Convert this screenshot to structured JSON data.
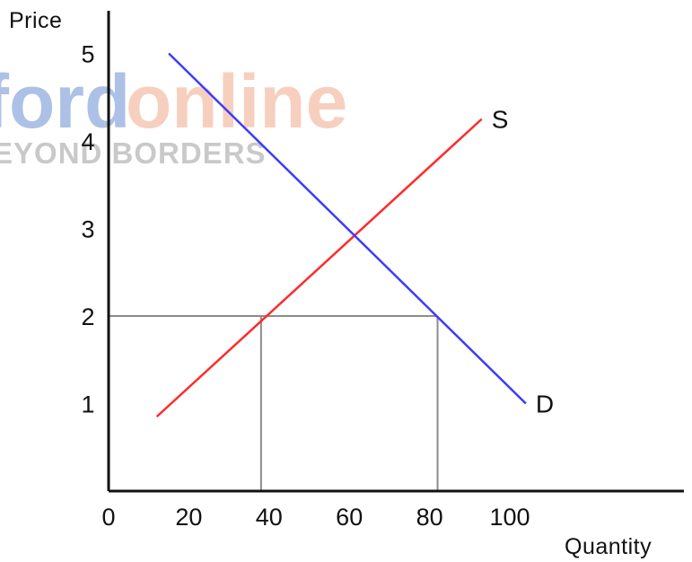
{
  "watermark": {
    "text_left": "ford",
    "text_right": "online",
    "subtext": "EYOND BORDERS",
    "color_left": "#6a8fd0",
    "color_right": "#f2a889",
    "color_sub": "#9e9e9e"
  },
  "chart_data": {
    "type": "line",
    "xlabel": "Quantity",
    "ylabel": "Price",
    "xlim": [
      0,
      110
    ],
    "ylim": [
      0,
      5.5
    ],
    "x_ticks": [
      0,
      20,
      40,
      60,
      80,
      100
    ],
    "y_ticks": [
      1,
      2,
      3,
      4,
      5
    ],
    "grid": false,
    "series": [
      {
        "name": "S",
        "color": "#ff2a2a",
        "points": [
          [
            12,
            0.85
          ],
          [
            93,
            4.25
          ]
        ]
      },
      {
        "name": "D",
        "color": "#3b3bff",
        "points": [
          [
            15,
            5.0
          ],
          [
            104,
            1.0
          ]
        ]
      }
    ],
    "reference_lines": [
      {
        "from": [
          0,
          2
        ],
        "to": [
          82,
          2
        ],
        "color": "#8c8c8c"
      },
      {
        "from": [
          38,
          0
        ],
        "to": [
          38,
          2
        ],
        "color": "#8c8c8c"
      },
      {
        "from": [
          82,
          0
        ],
        "to": [
          82,
          2
        ],
        "color": "#8c8c8c"
      }
    ]
  }
}
